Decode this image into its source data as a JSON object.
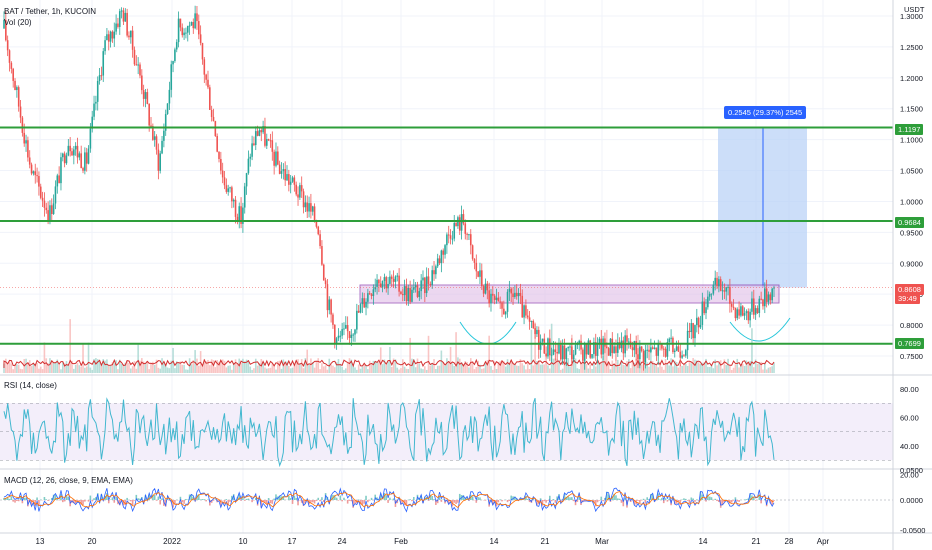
{
  "header": {
    "title": "BAT / Tether, 1h, KUCOIN",
    "volume_label": "Vol (20)",
    "rsi_label": "RSI (14, close)",
    "macd_label": "MACD (12, 26, close, 9, EMA, EMA)"
  },
  "price_axis": {
    "currency": "USDT",
    "ticks": [
      "1.3000",
      "1.2500",
      "1.2000",
      "1.1500",
      "1.1000",
      "1.0500",
      "1.0000",
      "0.9500",
      "0.9000",
      "0.8500",
      "0.8000",
      "0.7500"
    ]
  },
  "levels": {
    "top": "1.1197",
    "mid": "0.9684",
    "low": "0.7699",
    "current": "0.8608",
    "countdown": "39:49"
  },
  "measure": {
    "label": "0.2545 (29.37%) 2545"
  },
  "rsi_axis": {
    "ticks": [
      "80.00",
      "60.00",
      "40.00",
      "20.00"
    ]
  },
  "macd_axis": {
    "ticks": [
      "0.0500",
      "0.0000",
      "-0.0500"
    ]
  },
  "time_axis": {
    "labels": [
      "13",
      "20",
      "2022",
      "10",
      "17",
      "24",
      "Feb",
      "14",
      "21",
      "Mar",
      "14",
      "21",
      "28",
      "Apr"
    ]
  },
  "colors": {
    "up": "#26a69a",
    "down": "#ef5350",
    "level_line": "#2e9e3a",
    "box_fill": "#e1bee7",
    "box_border": "#7b1fa2",
    "measure_fill": "#bbd3f7",
    "measure_line": "#2962ff",
    "rsi_line": "#42b7cf",
    "rsi_band": "#f3eefa",
    "macd_line": "#2962ff",
    "signal_line": "#ff6d00",
    "pattern_curve": "#26c6da"
  },
  "chart_data": {
    "type": "candlestick",
    "symbol": "BAT / Tether, 1h, KUCOIN",
    "y_range": [
      0.73,
      1.32
    ],
    "price_path": [
      [
        0.0,
        1.28
      ],
      [
        0.03,
        1.05
      ],
      [
        0.05,
        0.98
      ],
      [
        0.07,
        1.1
      ],
      [
        0.09,
        1.06
      ],
      [
        0.11,
        1.25
      ],
      [
        0.13,
        1.31
      ],
      [
        0.15,
        1.2
      ],
      [
        0.17,
        1.06
      ],
      [
        0.19,
        1.28
      ],
      [
        0.21,
        1.29
      ],
      [
        0.23,
        1.13
      ],
      [
        0.24,
        1.04
      ],
      [
        0.26,
        0.97
      ],
      [
        0.27,
        1.08
      ],
      [
        0.28,
        1.12
      ],
      [
        0.3,
        1.06
      ],
      [
        0.31,
        1.04
      ],
      [
        0.33,
        1.0
      ],
      [
        0.345,
        0.96
      ],
      [
        0.355,
        0.84
      ],
      [
        0.365,
        0.775
      ],
      [
        0.38,
        0.79
      ],
      [
        0.395,
        0.84
      ],
      [
        0.41,
        0.88
      ],
      [
        0.43,
        0.865
      ],
      [
        0.445,
        0.85
      ],
      [
        0.46,
        0.86
      ],
      [
        0.475,
        0.9
      ],
      [
        0.49,
        0.955
      ],
      [
        0.505,
        0.97
      ],
      [
        0.515,
        0.9
      ],
      [
        0.53,
        0.85
      ],
      [
        0.545,
        0.82
      ],
      [
        0.56,
        0.855
      ],
      [
        0.575,
        0.8
      ],
      [
        0.59,
        0.77
      ],
      [
        0.61,
        0.755
      ],
      [
        0.64,
        0.76
      ],
      [
        0.66,
        0.765
      ],
      [
        0.68,
        0.77
      ],
      [
        0.7,
        0.755
      ],
      [
        0.72,
        0.76
      ],
      [
        0.745,
        0.765
      ],
      [
        0.76,
        0.8
      ],
      [
        0.775,
        0.86
      ],
      [
        0.79,
        0.86
      ],
      [
        0.8,
        0.83
      ],
      [
        0.815,
        0.82
      ],
      [
        0.83,
        0.84
      ],
      [
        0.845,
        0.8608
      ]
    ]
  }
}
